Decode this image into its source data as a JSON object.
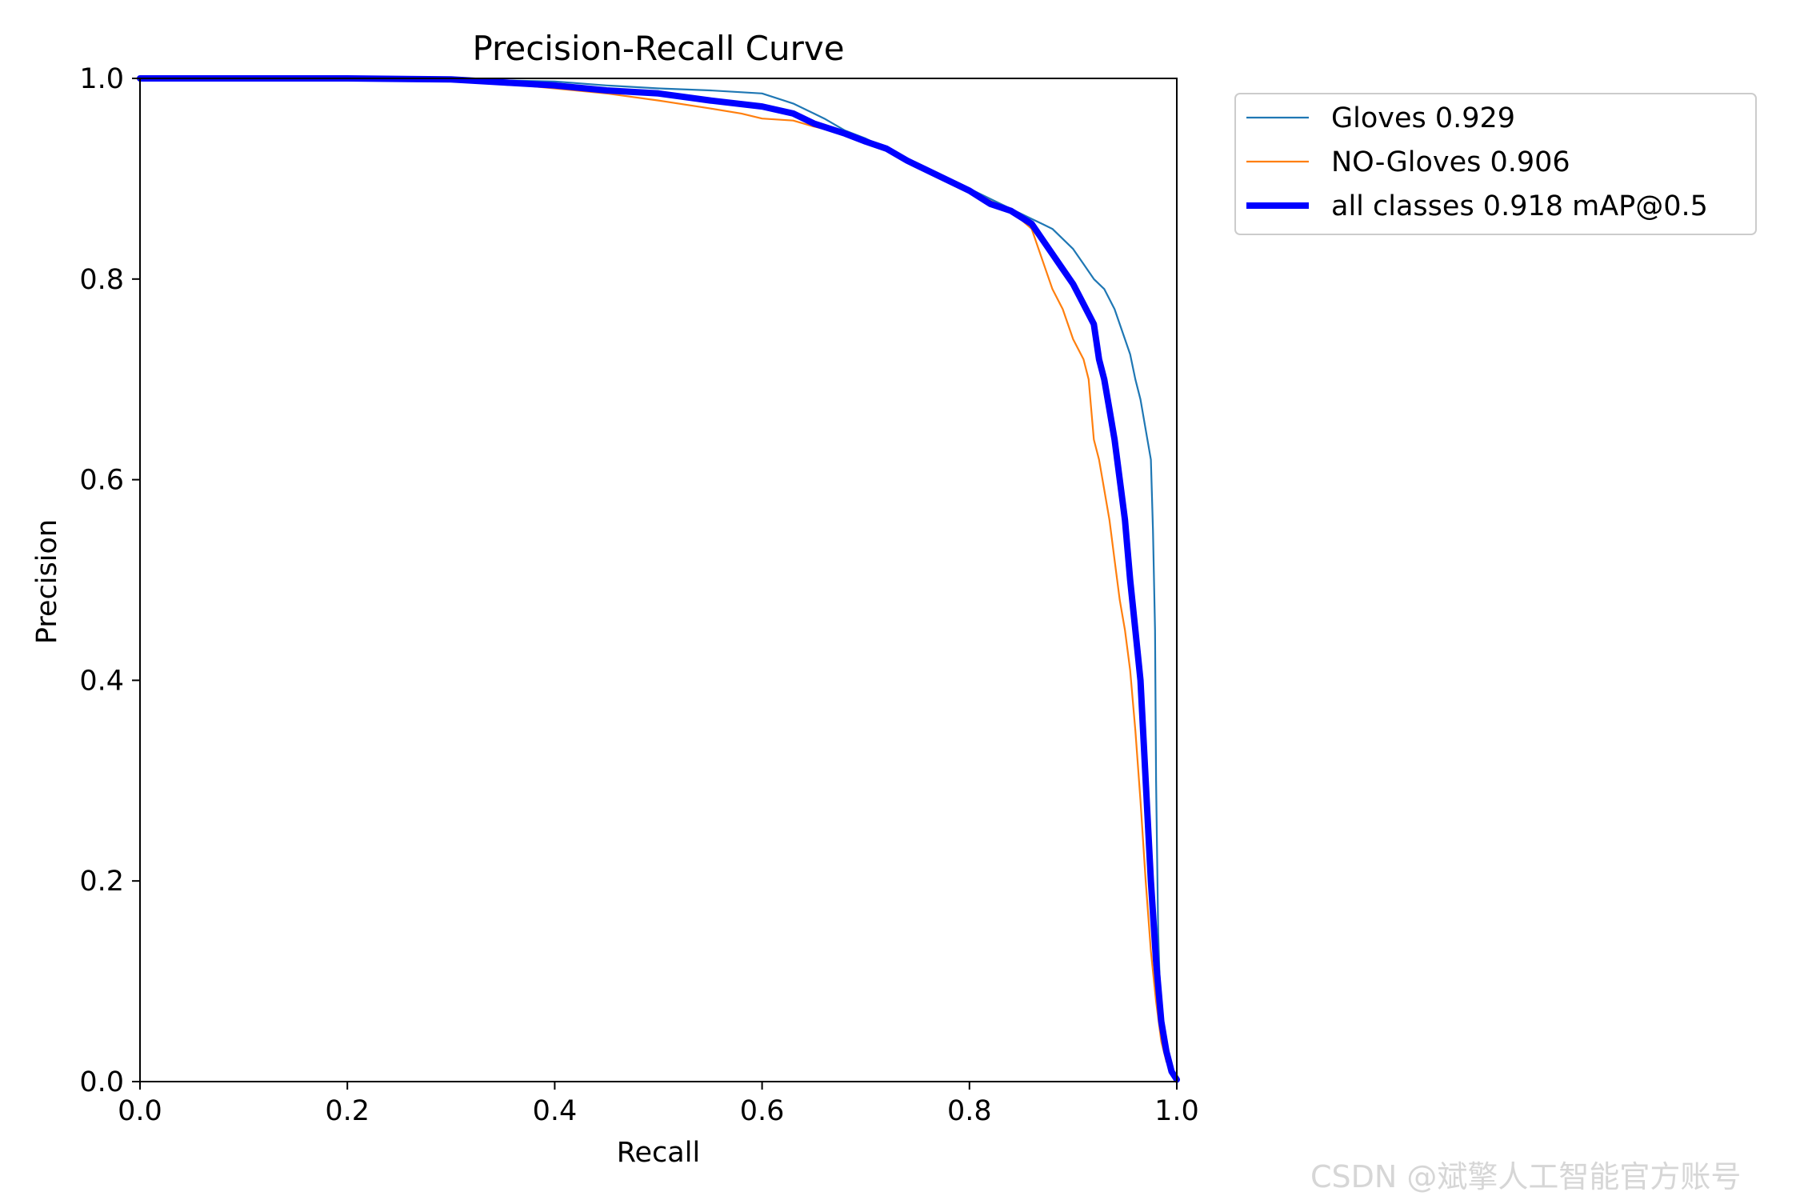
{
  "chart_data": {
    "type": "line",
    "title": "Precision-Recall Curve",
    "xlabel": "Recall",
    "ylabel": "Precision",
    "xlim": [
      0,
      1
    ],
    "ylim": [
      0,
      1
    ],
    "xticks": [
      "0.0",
      "0.2",
      "0.4",
      "0.6",
      "0.8",
      "1.0"
    ],
    "yticks": [
      "0.0",
      "0.2",
      "0.4",
      "0.6",
      "0.8",
      "1.0"
    ],
    "grid": false,
    "legend_position": "outside-top-right",
    "series": [
      {
        "name": "Gloves 0.929",
        "color": "#1f77b4",
        "width": "thin",
        "x": [
          0.0,
          0.1,
          0.2,
          0.3,
          0.35,
          0.4,
          0.45,
          0.5,
          0.55,
          0.6,
          0.63,
          0.65,
          0.66,
          0.68,
          0.7,
          0.72,
          0.74,
          0.76,
          0.78,
          0.8,
          0.82,
          0.84,
          0.86,
          0.87,
          0.88,
          0.89,
          0.9,
          0.91,
          0.92,
          0.93,
          0.935,
          0.94,
          0.95,
          0.955,
          0.96,
          0.965,
          0.97,
          0.975,
          0.977,
          0.979,
          0.98,
          0.982,
          0.985,
          0.99,
          0.995,
          1.0
        ],
        "y": [
          1.0,
          1.0,
          1.0,
          0.999,
          0.998,
          0.997,
          0.993,
          0.99,
          0.988,
          0.985,
          0.975,
          0.965,
          0.96,
          0.948,
          0.94,
          0.93,
          0.92,
          0.91,
          0.9,
          0.89,
          0.88,
          0.87,
          0.86,
          0.855,
          0.85,
          0.84,
          0.83,
          0.815,
          0.8,
          0.79,
          0.78,
          0.77,
          0.74,
          0.725,
          0.7,
          0.68,
          0.65,
          0.62,
          0.55,
          0.45,
          0.3,
          0.15,
          0.05,
          0.02,
          0.01,
          0.005
        ]
      },
      {
        "name": "NO-Gloves 0.906",
        "color": "#ff7f0e",
        "width": "thin",
        "x": [
          0.0,
          0.1,
          0.2,
          0.3,
          0.35,
          0.4,
          0.45,
          0.5,
          0.55,
          0.58,
          0.6,
          0.63,
          0.65,
          0.68,
          0.7,
          0.72,
          0.74,
          0.76,
          0.78,
          0.8,
          0.82,
          0.84,
          0.86,
          0.87,
          0.88,
          0.89,
          0.9,
          0.91,
          0.915,
          0.92,
          0.925,
          0.93,
          0.935,
          0.94,
          0.945,
          0.95,
          0.955,
          0.96,
          0.965,
          0.97,
          0.975,
          0.98,
          0.985,
          0.99,
          0.995,
          1.0
        ],
        "y": [
          1.0,
          1.0,
          1.0,
          0.999,
          0.995,
          0.99,
          0.985,
          0.978,
          0.97,
          0.965,
          0.96,
          0.958,
          0.952,
          0.945,
          0.938,
          0.93,
          0.92,
          0.91,
          0.9,
          0.89,
          0.878,
          0.868,
          0.85,
          0.82,
          0.79,
          0.77,
          0.74,
          0.72,
          0.7,
          0.64,
          0.62,
          0.59,
          0.56,
          0.52,
          0.48,
          0.45,
          0.41,
          0.35,
          0.28,
          0.2,
          0.13,
          0.08,
          0.04,
          0.02,
          0.01,
          0.005
        ]
      },
      {
        "name": "all classes 0.918 mAP@0.5",
        "color": "#0000ff",
        "width": "thick",
        "x": [
          0.0,
          0.1,
          0.2,
          0.3,
          0.35,
          0.4,
          0.45,
          0.5,
          0.55,
          0.6,
          0.63,
          0.65,
          0.68,
          0.7,
          0.72,
          0.74,
          0.76,
          0.78,
          0.8,
          0.82,
          0.84,
          0.86,
          0.87,
          0.88,
          0.89,
          0.9,
          0.91,
          0.92,
          0.925,
          0.93,
          0.935,
          0.94,
          0.945,
          0.95,
          0.955,
          0.96,
          0.965,
          0.97,
          0.975,
          0.98,
          0.985,
          0.99,
          0.995,
          1.0
        ],
        "y": [
          1.0,
          1.0,
          1.0,
          0.999,
          0.996,
          0.993,
          0.988,
          0.985,
          0.978,
          0.972,
          0.965,
          0.955,
          0.945,
          0.937,
          0.93,
          0.918,
          0.908,
          0.898,
          0.888,
          0.875,
          0.868,
          0.855,
          0.84,
          0.825,
          0.81,
          0.795,
          0.775,
          0.755,
          0.72,
          0.7,
          0.67,
          0.64,
          0.6,
          0.56,
          0.5,
          0.45,
          0.4,
          0.3,
          0.2,
          0.12,
          0.06,
          0.03,
          0.01,
          0.002
        ]
      }
    ]
  },
  "watermark": "CSDN @斌擎人工智能官方账号"
}
